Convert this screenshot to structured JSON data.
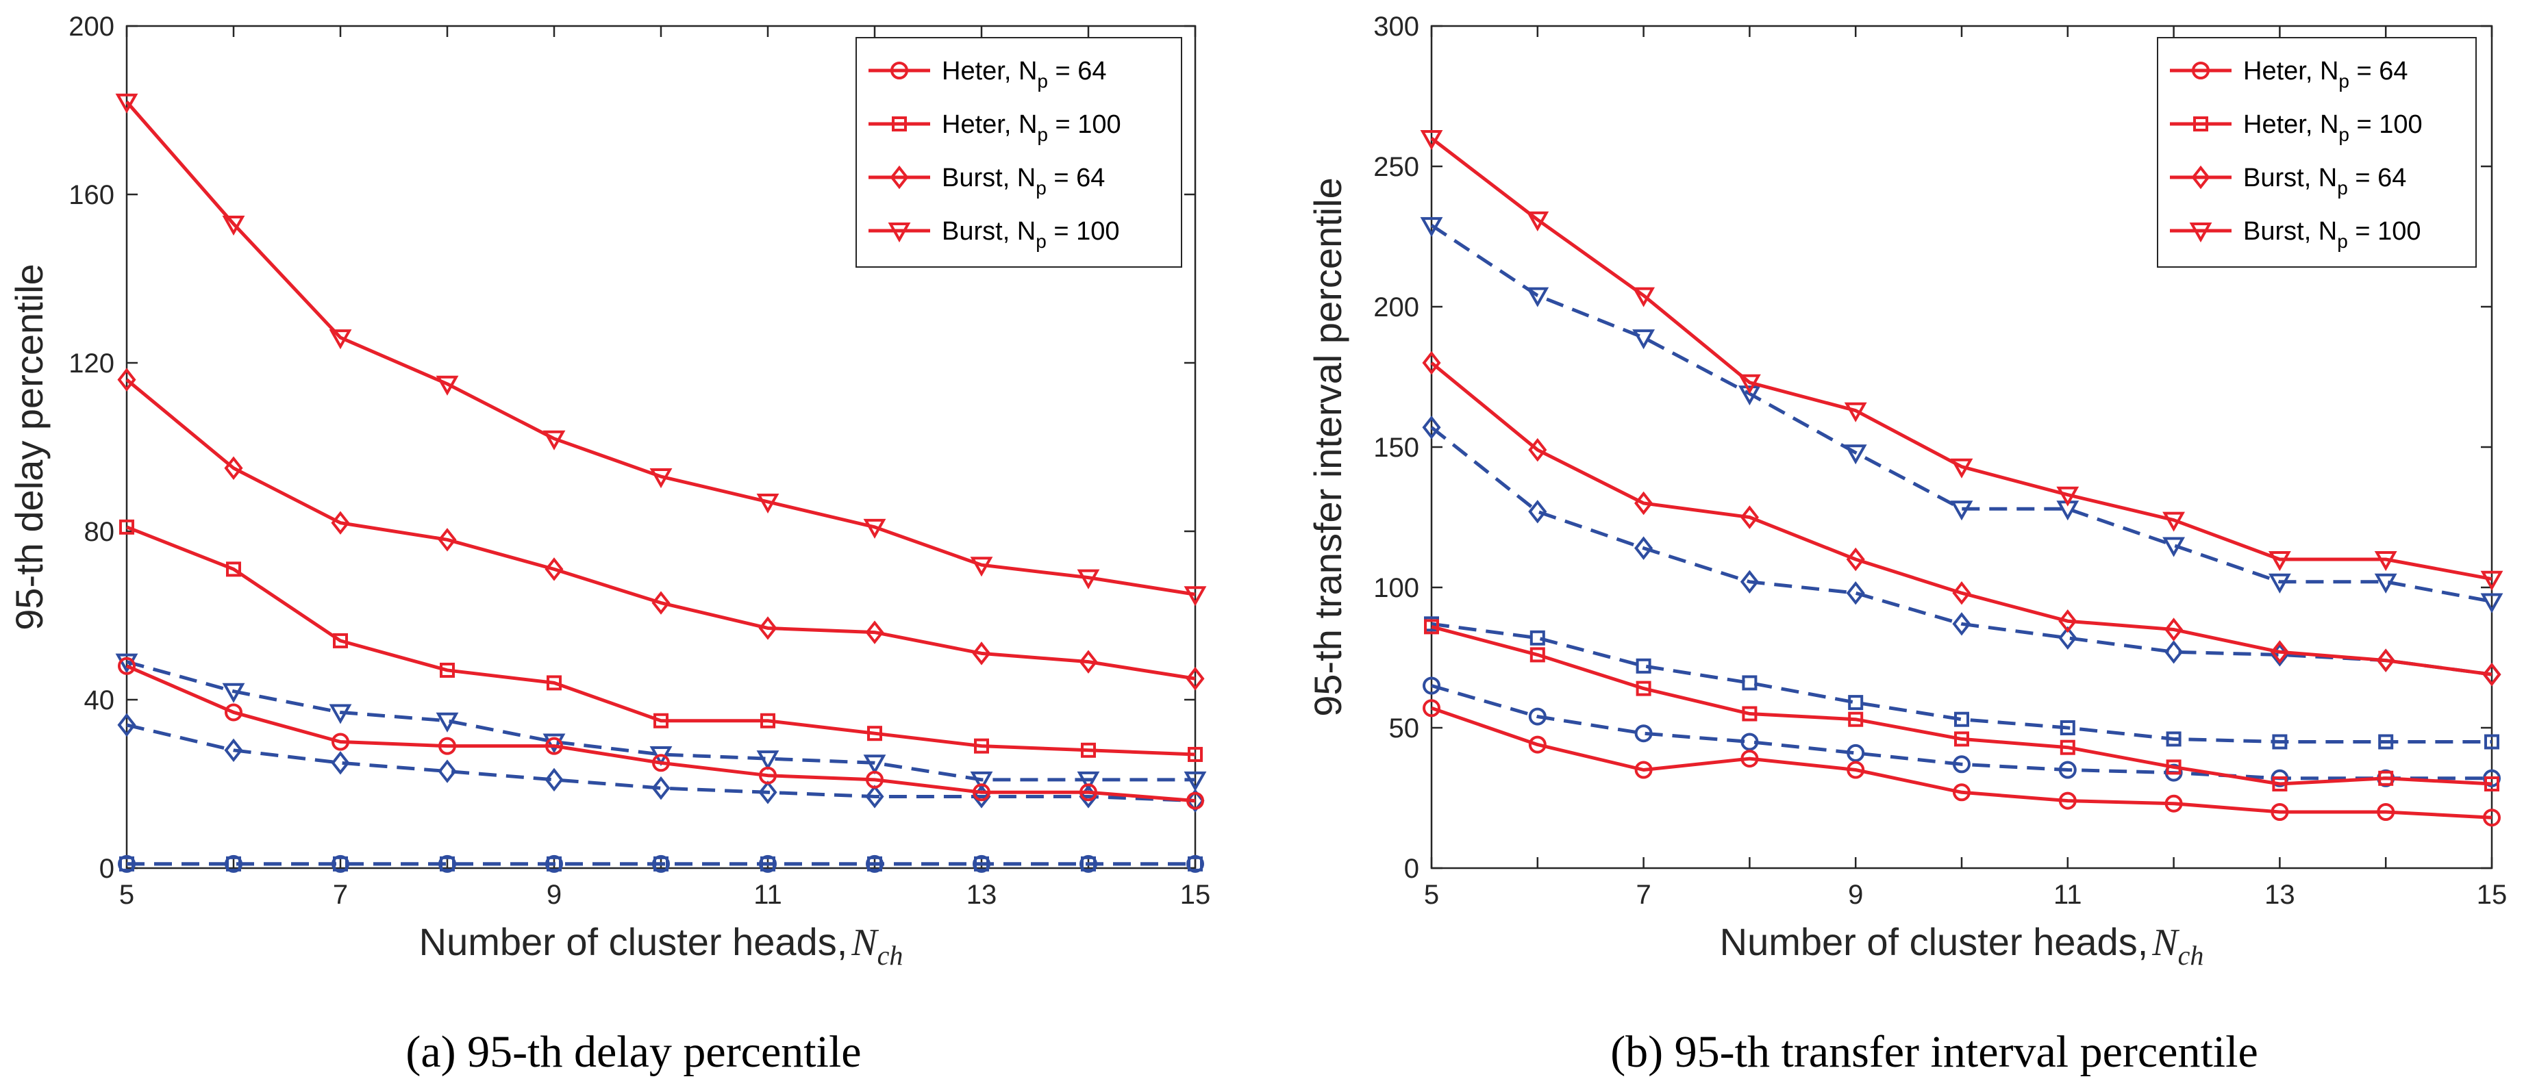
{
  "colors": {
    "red": "#E8202A",
    "blue": "#2E4DA0",
    "axis": "#262626"
  },
  "chart_data": [
    {
      "type": "line",
      "panel": "a",
      "caption_label": "(a)",
      "caption_text": " 95-th delay percentile",
      "ylabel": "95-th delay percentile",
      "xlabel_text": "Number of cluster heads,",
      "xlabel_symbol": "N",
      "xlabel_sub": "ch",
      "x": [
        5,
        6,
        7,
        8,
        9,
        10,
        11,
        12,
        13,
        14,
        15
      ],
      "xticks": [
        "5",
        "7",
        "9",
        "11",
        "13",
        "15"
      ],
      "yticks": [
        "0",
        "40",
        "80",
        "120",
        "160",
        "200"
      ],
      "xlim": [
        5,
        15
      ],
      "ylim": [
        0,
        200
      ],
      "legend": [
        {
          "prefix": "Heter, N",
          "sub": "p",
          "suffix": " = 64",
          "marker": "circle"
        },
        {
          "prefix": "Heter, N",
          "sub": "p",
          "suffix": " = 100",
          "marker": "square"
        },
        {
          "prefix": "Burst, N",
          "sub": "p",
          "suffix": " = 64",
          "marker": "diamond"
        },
        {
          "prefix": "Burst, N",
          "sub": "p",
          "suffix": " = 100",
          "marker": "triangle-down"
        }
      ],
      "series": [
        {
          "name": "Heter, Np = 64",
          "color": "red",
          "style": "solid",
          "marker": "circle",
          "values": [
            48,
            37,
            30,
            29,
            29,
            25,
            22,
            21,
            18,
            18,
            16
          ]
        },
        {
          "name": "Heter, Np = 100",
          "color": "red",
          "style": "solid",
          "marker": "square",
          "values": [
            81,
            71,
            54,
            47,
            44,
            35,
            35,
            32,
            29,
            28,
            27
          ]
        },
        {
          "name": "Burst, Np = 64",
          "color": "red",
          "style": "solid",
          "marker": "diamond",
          "values": [
            116,
            95,
            82,
            78,
            71,
            63,
            57,
            56,
            51,
            49,
            45
          ]
        },
        {
          "name": "Burst, Np = 100",
          "color": "red",
          "style": "solid",
          "marker": "triangle-down",
          "values": [
            182,
            153,
            126,
            115,
            102,
            93,
            87,
            81,
            72,
            69,
            65
          ]
        },
        {
          "name": "Heter, Np = 64 (dashed)",
          "color": "blue",
          "style": "dashed",
          "marker": "circle",
          "values": [
            1,
            1,
            1,
            1,
            1,
            1,
            1,
            1,
            1,
            1,
            1
          ]
        },
        {
          "name": "Heter, Np = 100 (dashed)",
          "color": "blue",
          "style": "dashed",
          "marker": "square",
          "values": [
            1,
            1,
            1,
            1,
            1,
            1,
            1,
            1,
            1,
            1,
            1
          ]
        },
        {
          "name": "Burst, Np = 64 (dashed)",
          "color": "blue",
          "style": "dashed",
          "marker": "diamond",
          "values": [
            34,
            28,
            25,
            23,
            21,
            19,
            18,
            17,
            17,
            17,
            16
          ]
        },
        {
          "name": "Burst, Np = 100 (dashed)",
          "color": "blue",
          "style": "dashed",
          "marker": "triangle-down",
          "values": [
            49,
            42,
            37,
            35,
            30,
            27,
            26,
            25,
            21,
            21,
            21
          ]
        }
      ]
    },
    {
      "type": "line",
      "panel": "b",
      "caption_label": "(b)",
      "caption_text": " 95-th transfer interval percentile",
      "ylabel": "95-th transfer interval percentile",
      "xlabel_text": "Number of cluster heads,",
      "xlabel_symbol": "N",
      "xlabel_sub": "ch",
      "x": [
        5,
        6,
        7,
        8,
        9,
        10,
        11,
        12,
        13,
        14,
        15
      ],
      "xticks": [
        "5",
        "7",
        "9",
        "11",
        "13",
        "15"
      ],
      "yticks": [
        "0",
        "50",
        "100",
        "150",
        "200",
        "250",
        "300"
      ],
      "xlim": [
        5,
        15
      ],
      "ylim": [
        0,
        300
      ],
      "legend": [
        {
          "prefix": "Heter, N",
          "sub": "p",
          "suffix": " = 64",
          "marker": "circle"
        },
        {
          "prefix": "Heter, N",
          "sub": "p",
          "suffix": " = 100",
          "marker": "square"
        },
        {
          "prefix": "Burst, N",
          "sub": "p",
          "suffix": " = 64",
          "marker": "diamond"
        },
        {
          "prefix": "Burst, N",
          "sub": "p",
          "suffix": " = 100",
          "marker": "triangle-down"
        }
      ],
      "series": [
        {
          "name": "Heter, Np = 64",
          "color": "red",
          "style": "solid",
          "marker": "circle",
          "values": [
            57,
            44,
            35,
            39,
            35,
            27,
            24,
            23,
            20,
            20,
            18
          ]
        },
        {
          "name": "Heter, Np = 100",
          "color": "red",
          "style": "solid",
          "marker": "square",
          "values": [
            86,
            76,
            64,
            55,
            53,
            46,
            43,
            36,
            30,
            32,
            30
          ]
        },
        {
          "name": "Burst, Np = 64",
          "color": "red",
          "style": "solid",
          "marker": "diamond",
          "values": [
            180,
            149,
            130,
            125,
            110,
            98,
            88,
            85,
            77,
            74,
            69
          ]
        },
        {
          "name": "Burst, Np = 100",
          "color": "red",
          "style": "solid",
          "marker": "triangle-down",
          "values": [
            260,
            231,
            204,
            173,
            163,
            143,
            133,
            124,
            110,
            110,
            103
          ]
        },
        {
          "name": "Heter, Np = 64 (dashed)",
          "color": "blue",
          "style": "dashed",
          "marker": "circle",
          "values": [
            65,
            54,
            48,
            45,
            41,
            37,
            35,
            34,
            32,
            32,
            32
          ]
        },
        {
          "name": "Heter, Np = 100 (dashed)",
          "color": "blue",
          "style": "dashed",
          "marker": "square",
          "values": [
            87,
            82,
            72,
            66,
            59,
            53,
            50,
            46,
            45,
            45,
            45
          ]
        },
        {
          "name": "Burst, Np = 64 (dashed)",
          "color": "blue",
          "style": "dashed",
          "marker": "diamond",
          "values": [
            157,
            127,
            114,
            102,
            98,
            87,
            82,
            77,
            76,
            74,
            69
          ]
        },
        {
          "name": "Burst, Np = 100 (dashed)",
          "color": "blue",
          "style": "dashed",
          "marker": "triangle-down",
          "values": [
            229,
            204,
            189,
            169,
            148,
            128,
            128,
            115,
            102,
            102,
            95
          ]
        }
      ]
    }
  ]
}
